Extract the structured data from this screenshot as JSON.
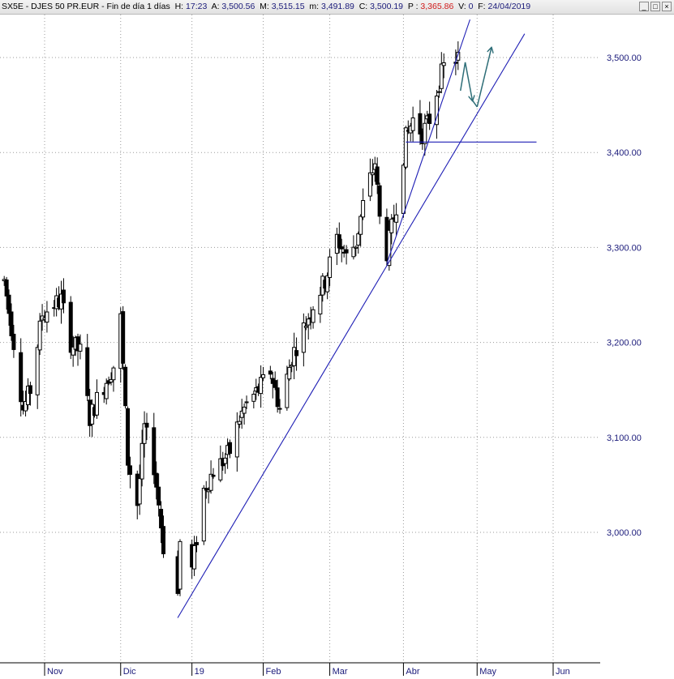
{
  "header": {
    "symbol": "SX5E - DJES 50 PR.EUR - Fin de día 1 días",
    "items": [
      {
        "label": "H:",
        "value": "17:23",
        "color": "navy"
      },
      {
        "label": "A:",
        "value": "3,500.56",
        "color": "navy"
      },
      {
        "label": "M:",
        "value": "3,515.15",
        "color": "navy"
      },
      {
        "label": "m:",
        "value": "3,491.89",
        "color": "navy"
      },
      {
        "label": "C:",
        "value": "3,500.19",
        "color": "navy"
      },
      {
        "label": "P :",
        "value": "3,365.86",
        "color": "red"
      },
      {
        "label": "V:",
        "value": "0",
        "color": "navy"
      },
      {
        "label": "F:",
        "value": "24/04/2019",
        "color": "navy"
      }
    ]
  },
  "window_buttons": {
    "minimize": "_",
    "maximize": "□",
    "close": "×"
  },
  "colors": {
    "candle": "#000000",
    "trendline": "#1f1fb5",
    "support": "#1f1fb5",
    "projection": "#2e6e78",
    "grid": "#9a9a9a",
    "axis": "#000000"
  },
  "chart_data": {
    "type": "candlestick",
    "title": "SX5E - DJES 50 PR.EUR - Fin de día 1 días",
    "ylim": [
      2905,
      3550
    ],
    "yticks": [
      3000,
      3100,
      3200,
      3300,
      3400,
      3500
    ],
    "ytick_labels": [
      "3,000.00",
      "3,100.00",
      "3,200.00",
      "3,300.00",
      "3,400.00",
      "3,500.00"
    ],
    "date_range": [
      "2018-10-15",
      "2019-06-21"
    ],
    "xticks": [
      {
        "label": "Nov",
        "date": "2018-11-01"
      },
      {
        "label": "Dic",
        "date": "2018-12-03"
      },
      {
        "label": "19",
        "date": "2019-01-02"
      },
      {
        "label": "Feb",
        "date": "2019-02-01"
      },
      {
        "label": "Mar",
        "date": "2019-03-01"
      },
      {
        "label": "Abr",
        "date": "2019-04-01"
      },
      {
        "label": "May",
        "date": "2019-05-02"
      },
      {
        "label": "Jun",
        "date": "2019-06-03"
      }
    ],
    "grid": true,
    "key_points": {
      "december_low": {
        "date": "2018-12-27",
        "value": 2908
      },
      "march_low": {
        "date": "2019-03-25",
        "value": 3283
      },
      "last_close": {
        "date": "2019-04-24",
        "value": 3500.19
      }
    },
    "trendlines": [
      {
        "name": "",
        "points": [
          {
            "date": "2018-12-27",
            "value": 2910
          },
          {
            "date": "2019-05-22",
            "value": 3525
          }
        ]
      },
      {
        "name": "",
        "points": [
          {
            "date": "2019-03-25",
            "value": 3283
          },
          {
            "date": "2019-04-29",
            "value": 3540
          }
        ]
      }
    ],
    "support_line": {
      "value": 3411,
      "from": "2019-04-02",
      "to": "2019-05-27"
    },
    "projection_path": [
      {
        "date": "2019-04-25",
        "value": 3465
      },
      {
        "date": "2019-04-27",
        "value": 3495
      },
      {
        "date": "2019-04-30",
        "value": 3455
      },
      {
        "date": "2019-05-02",
        "value": 3448
      },
      {
        "date": "2019-05-08",
        "value": 3510
      }
    ]
  }
}
